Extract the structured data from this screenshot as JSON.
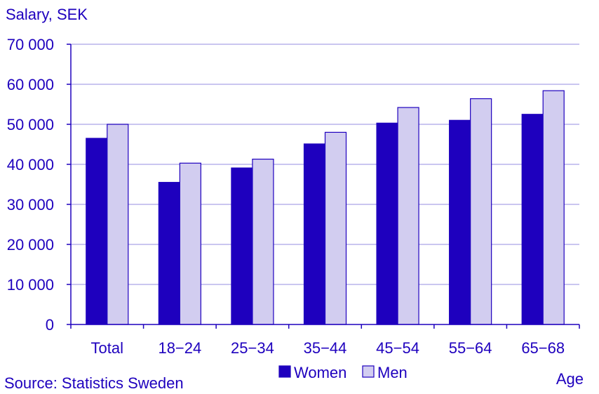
{
  "colors": {
    "women": "#1E00BE",
    "men": "#D2CDF0",
    "text": "#1E00BE",
    "bar_stroke": "#1E00BE",
    "axis": "#1E00BE",
    "grid": "#B9B4EB"
  },
  "chart_data": {
    "type": "bar",
    "ylabel": "Salary, SEK",
    "xlabel": "Age",
    "source": "Source: Statistics Sweden",
    "ylim": [
      0,
      70000
    ],
    "yticks": [
      0,
      10000,
      20000,
      30000,
      40000,
      50000,
      60000,
      70000
    ],
    "ytick_labels": [
      "0",
      "10 000",
      "20 000",
      "30 000",
      "40 000",
      "50 000",
      "60 000",
      "70 000"
    ],
    "categories": [
      "Total",
      "18−24",
      "25−34",
      "35−44",
      "45−54",
      "55−64",
      "65−68"
    ],
    "series": [
      {
        "name": "Women",
        "values": [
          46500,
          35500,
          39100,
          45100,
          50300,
          51000,
          52500
        ]
      },
      {
        "name": "Men",
        "values": [
          50000,
          40300,
          41300,
          48000,
          54200,
          56400,
          58400
        ]
      }
    ],
    "grid": true,
    "legend_position": "bottom-center"
  }
}
